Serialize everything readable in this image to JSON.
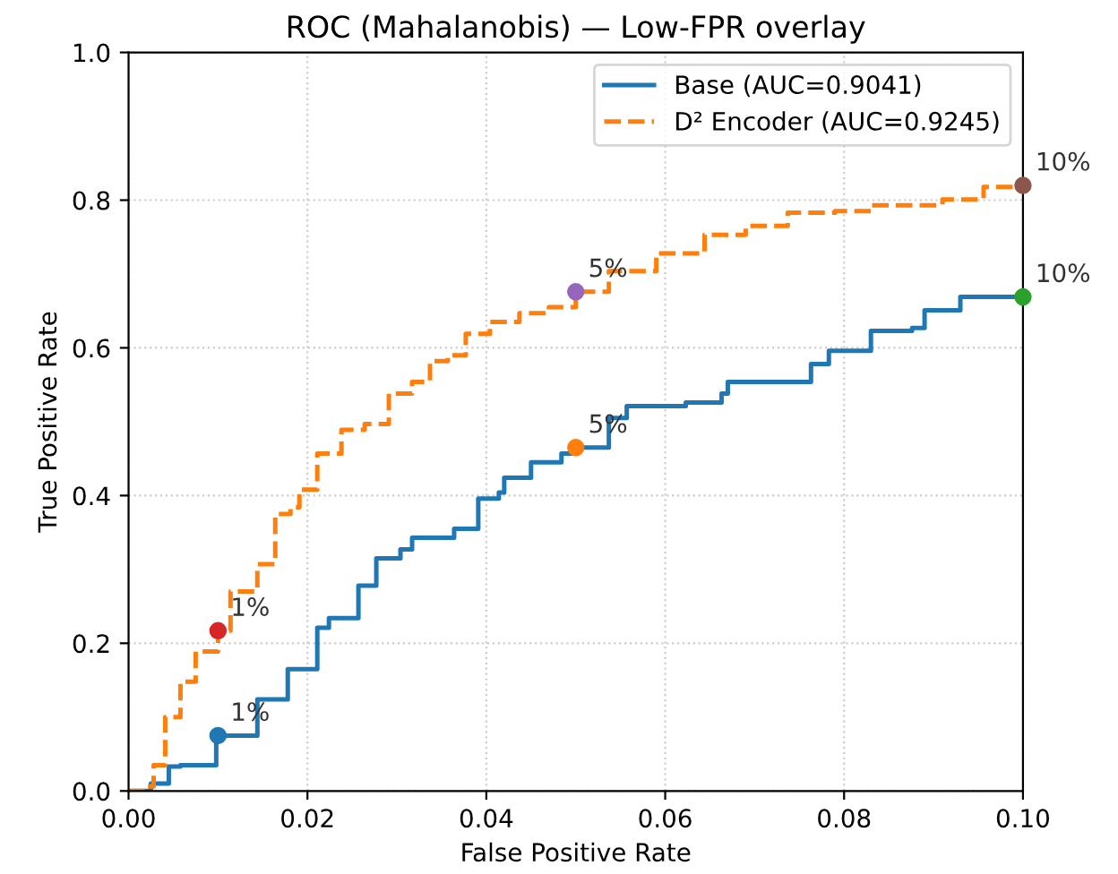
{
  "chart_data": {
    "type": "step",
    "title": "ROC (Mahalanobis) — Low-FPR overlay",
    "xlabel": "False Positive Rate",
    "ylabel": "True Positive Rate",
    "xlim": [
      0,
      0.1
    ],
    "ylim": [
      0,
      1
    ],
    "xticks": [
      {
        "value": 0,
        "label": "0.00"
      },
      {
        "value": 0.02,
        "label": "0.02"
      },
      {
        "value": 0.04,
        "label": "0.04"
      },
      {
        "value": 0.06,
        "label": "0.06"
      },
      {
        "value": 0.08,
        "label": "0.08"
      },
      {
        "value": 0.1,
        "label": "0.10"
      }
    ],
    "yticks": [
      {
        "value": 0,
        "label": "0.0"
      },
      {
        "value": 0.2,
        "label": "0.2"
      },
      {
        "value": 0.4,
        "label": "0.4"
      },
      {
        "value": 0.6,
        "label": "0.6"
      },
      {
        "value": 0.8,
        "label": "0.8"
      },
      {
        "value": 1,
        "label": "1.0"
      }
    ],
    "grid": true,
    "legend": "top right",
    "series": [
      {
        "name": "Base (AUC=0.9041)",
        "color": "#1f77b4",
        "line_style": "solid",
        "x": [
          0,
          0.0025,
          0.0045,
          0.0058,
          0.0098,
          0.0144,
          0.0178,
          0.0211,
          0.0224,
          0.0257,
          0.0277,
          0.0304,
          0.0317,
          0.0364,
          0.0391,
          0.0414,
          0.042,
          0.0437,
          0.045,
          0.0484,
          0.05,
          0.0537,
          0.0557,
          0.0623,
          0.0663,
          0.067,
          0.0763,
          0.0783,
          0.083,
          0.0876,
          0.089,
          0.093,
          0.1
        ],
        "values": [
          0,
          0.01,
          0.033,
          0.035,
          0.075,
          0.124,
          0.165,
          0.221,
          0.234,
          0.278,
          0.315,
          0.327,
          0.343,
          0.355,
          0.396,
          0.404,
          0.424,
          0.424,
          0.445,
          0.457,
          0.465,
          0.505,
          0.521,
          0.526,
          0.538,
          0.554,
          0.578,
          0.596,
          0.623,
          0.627,
          0.651,
          0.669,
          0.669
        ]
      },
      {
        "name": "D² Encoder (AUC=0.9245)",
        "color": "#ff7f0e",
        "line_style": "dashed",
        "x": [
          0,
          0.0018,
          0.0028,
          0.0041,
          0.0058,
          0.0075,
          0.01,
          0.0114,
          0.0144,
          0.0164,
          0.0181,
          0.0191,
          0.0211,
          0.0238,
          0.0264,
          0.0291,
          0.0317,
          0.0337,
          0.0357,
          0.0377,
          0.0404,
          0.0437,
          0.047,
          0.05,
          0.0537,
          0.059,
          0.0644,
          0.069,
          0.0737,
          0.079,
          0.083,
          0.091,
          0.0956,
          0.1
        ],
        "values": [
          0,
          0.006,
          0.035,
          0.1,
          0.148,
          0.189,
          0.217,
          0.27,
          0.307,
          0.375,
          0.384,
          0.408,
          0.457,
          0.489,
          0.497,
          0.538,
          0.554,
          0.582,
          0.59,
          0.619,
          0.635,
          0.647,
          0.655,
          0.676,
          0.704,
          0.728,
          0.753,
          0.765,
          0.783,
          0.785,
          0.793,
          0.801,
          0.818,
          0.82
        ]
      },
      {
        "type": "scatter",
        "marker": "circle",
        "color": "#1f77b4",
        "x": [
          0.01
        ],
        "values": [
          0.075
        ]
      },
      {
        "type": "scatter",
        "marker": "circle",
        "color": "#ff7f0e",
        "x": [
          0.05
        ],
        "values": [
          0.465
        ]
      },
      {
        "type": "scatter",
        "marker": "circle",
        "color": "#2ca02c",
        "x": [
          0.1
        ],
        "values": [
          0.669
        ]
      },
      {
        "type": "scatter",
        "marker": "circle",
        "color": "#d62728",
        "x": [
          0.01
        ],
        "values": [
          0.217
        ]
      },
      {
        "type": "scatter",
        "marker": "circle",
        "color": "#9467bd",
        "x": [
          0.05
        ],
        "values": [
          0.676
        ]
      },
      {
        "type": "scatter",
        "marker": "circle",
        "color": "#8c564b",
        "x": [
          0.1
        ],
        "values": [
          0.82
        ]
      }
    ],
    "annotations": [
      {
        "text": "1%",
        "x": 0.01,
        "y": 0.075
      },
      {
        "text": "5%",
        "x": 0.05,
        "y": 0.465
      },
      {
        "text": "10%",
        "x": 0.1,
        "y": 0.669
      },
      {
        "text": "1%",
        "x": 0.01,
        "y": 0.217
      },
      {
        "text": "5%",
        "x": 0.05,
        "y": 0.676
      },
      {
        "text": "10%",
        "x": 0.1,
        "y": 0.82
      }
    ]
  }
}
